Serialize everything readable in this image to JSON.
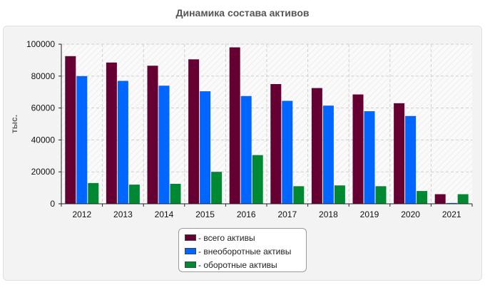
{
  "chart_data": {
    "type": "bar",
    "title": "Динамика состава активов",
    "ylabel": "тыс.",
    "xlabel": "",
    "categories": [
      "2012",
      "2013",
      "2014",
      "2015",
      "2016",
      "2017",
      "2018",
      "2019",
      "2020",
      "2021"
    ],
    "ylim": [
      0,
      100000
    ],
    "yticks": [
      0,
      20000,
      40000,
      60000,
      80000,
      100000
    ],
    "grid": true,
    "legend_position": "bottom-center",
    "series": [
      {
        "name": "- всего активы",
        "color": "#660033",
        "values": [
          92500,
          88500,
          86500,
          90500,
          98000,
          75000,
          72500,
          68500,
          63000,
          6000
        ]
      },
      {
        "name": "- внеоборотные активы",
        "color": "#0066ff",
        "values": [
          80000,
          77000,
          74000,
          70500,
          67500,
          64500,
          61500,
          58000,
          55000,
          500
        ]
      },
      {
        "name": "- оборотные активы",
        "color": "#008833",
        "values": [
          13000,
          12000,
          12500,
          20000,
          30500,
          11000,
          11500,
          11000,
          8000,
          6000
        ]
      }
    ]
  }
}
